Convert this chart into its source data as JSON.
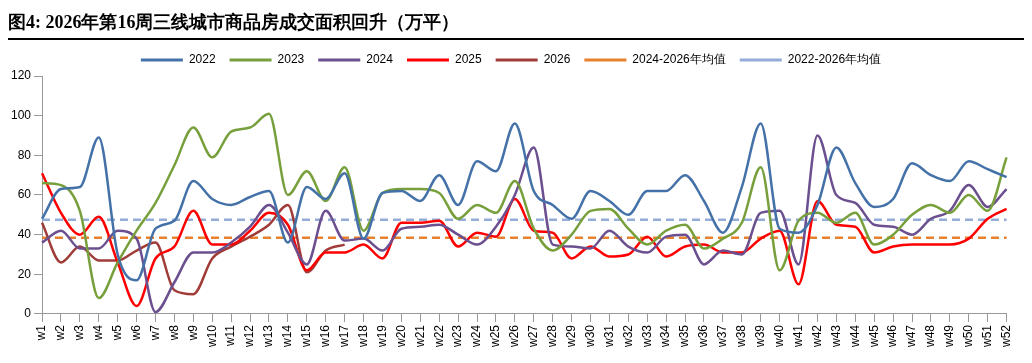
{
  "chart_data": {
    "type": "line",
    "title": "图4:  2026年第16周三线城市商品房成交面积回升（万平）",
    "categories": [
      "w1",
      "w2",
      "w3",
      "w4",
      "w5",
      "w6",
      "w7",
      "w8",
      "w9",
      "w10",
      "w11",
      "w12",
      "w13",
      "w14",
      "w15",
      "w16",
      "w17",
      "w18",
      "w19",
      "w20",
      "w21",
      "w22",
      "w23",
      "w24",
      "w25",
      "w26",
      "w27",
      "w28",
      "w29",
      "w30",
      "w31",
      "w32",
      "w33",
      "w34",
      "w35",
      "w36",
      "w37",
      "w38",
      "w39",
      "w40",
      "w41",
      "w42",
      "w43",
      "w44",
      "w45",
      "w46",
      "w47",
      "w48",
      "w49",
      "w50",
      "w51",
      "w52"
    ],
    "series": [
      {
        "name": "2022",
        "color": "#4472a8",
        "values": [
          48,
          63,
          64,
          89,
          30,
          17,
          43,
          47,
          67,
          58,
          55,
          59,
          62,
          36,
          64,
          58,
          71,
          38,
          61,
          62,
          57,
          70,
          55,
          77,
          72,
          96,
          62,
          55,
          48,
          62,
          57,
          50,
          62,
          62,
          70,
          57,
          41,
          64,
          96,
          43,
          41,
          55,
          84,
          66,
          54,
          58,
          76,
          70,
          67,
          77,
          73,
          69
        ]
      },
      {
        "name": "2023",
        "color": "#77a03c",
        "values": [
          66,
          65,
          52,
          8,
          26,
          42,
          56,
          75,
          94,
          79,
          92,
          94,
          101,
          60,
          72,
          57,
          74,
          42,
          61,
          63,
          63,
          61,
          48,
          55,
          51,
          67,
          43,
          32,
          40,
          52,
          53,
          43,
          35,
          42,
          45,
          33,
          38,
          46,
          74,
          22,
          47,
          51,
          46,
          51,
          35,
          40,
          50,
          55,
          51,
          60,
          52,
          79
        ]
      },
      {
        "name": "2024",
        "color": "#6b4f8f",
        "values": [
          36,
          42,
          33,
          33,
          42,
          38,
          1,
          16,
          31,
          31,
          36,
          44,
          55,
          41,
          25,
          52,
          37,
          38,
          32,
          43,
          44,
          45,
          40,
          35,
          44,
          60,
          84,
          35,
          34,
          33,
          42,
          34,
          31,
          39,
          40,
          25,
          32,
          30,
          51,
          52,
          25,
          90,
          60,
          56,
          45,
          44,
          40,
          48,
          52,
          65,
          54,
          63
        ]
      },
      {
        "name": "2025",
        "color": "#ff0000",
        "values": [
          71,
          51,
          40,
          49,
          26,
          4,
          28,
          34,
          52,
          35,
          35,
          42,
          51,
          45,
          22,
          31,
          31,
          35,
          28,
          46,
          46,
          47,
          34,
          41,
          39,
          58,
          42,
          41,
          28,
          34,
          29,
          30,
          39,
          29,
          34,
          35,
          31,
          31,
          38,
          42,
          15,
          57,
          45,
          44,
          31,
          34,
          35,
          35,
          35,
          38,
          48,
          53
        ]
      },
      {
        "name": "2026",
        "color": "#a03c38",
        "values": [
          46,
          26,
          34,
          27,
          27,
          32,
          36,
          12,
          10,
          28,
          34,
          39,
          45,
          55,
          21,
          32,
          35,
          null,
          null,
          null,
          null,
          null,
          null,
          null,
          null,
          null,
          null,
          null,
          null,
          null,
          null,
          null,
          null,
          null,
          null,
          null,
          null,
          null,
          null,
          null,
          null,
          null,
          null,
          null,
          null,
          null,
          null,
          null,
          null,
          null,
          null,
          null
        ]
      },
      {
        "name": "2024-2026年均值",
        "color": "#e8812e",
        "line_style": "dashed",
        "values": [
          38.5,
          38.5,
          38.5,
          38.5,
          38.5,
          38.5,
          38.5,
          38.5,
          38.5,
          38.5,
          38.5,
          38.5,
          38.5,
          38.5,
          38.5,
          38.5,
          38.5,
          38.5,
          38.5,
          38.5,
          38.5,
          38.5,
          38.5,
          38.5,
          38.5,
          38.5,
          38.5,
          38.5,
          38.5,
          38.5,
          38.5,
          38.5,
          38.5,
          38.5,
          38.5,
          38.5,
          38.5,
          38.5,
          38.5,
          38.5,
          38.5,
          38.5,
          38.5,
          38.5,
          38.5,
          38.5,
          38.5,
          38.5,
          38.5,
          38.5,
          38.5,
          38.5
        ]
      },
      {
        "name": "2022-2026年均值",
        "color": "#94acd8",
        "line_style": "dashed",
        "values": [
          47.5,
          47.5,
          47.5,
          47.5,
          47.5,
          47.5,
          47.5,
          47.5,
          47.5,
          47.5,
          47.5,
          47.5,
          47.5,
          47.5,
          47.5,
          47.5,
          47.5,
          47.5,
          47.5,
          47.5,
          47.5,
          47.5,
          47.5,
          47.5,
          47.5,
          47.5,
          47.5,
          47.5,
          47.5,
          47.5,
          47.5,
          47.5,
          47.5,
          47.5,
          47.5,
          47.5,
          47.5,
          47.5,
          47.5,
          47.5,
          47.5,
          47.5,
          47.5,
          47.5,
          47.5,
          47.5,
          47.5,
          47.5,
          47.5,
          47.5,
          47.5,
          47.5
        ]
      }
    ],
    "ylim": [
      0,
      120
    ],
    "yticks": [
      0,
      20,
      40,
      60,
      80,
      100,
      120
    ],
    "grid": false,
    "legend": "top",
    "marker": "none",
    "line_style": "solid"
  }
}
